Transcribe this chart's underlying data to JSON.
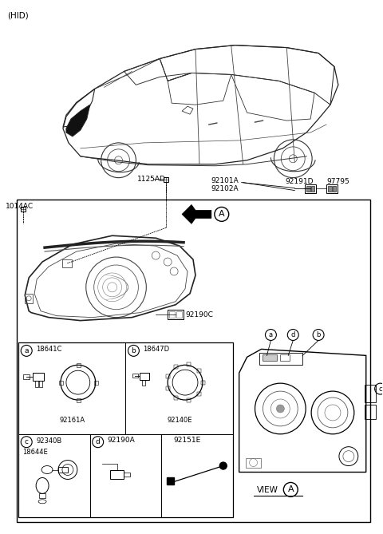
{
  "background_color": "#ffffff",
  "figsize": [
    4.8,
    6.69
  ],
  "dpi": 100,
  "parts": {
    "top_label": "(HID)",
    "label_1125AD": "1125AD",
    "label_1014AC": "1014AC",
    "label_92101A": "92101A",
    "label_92102A": "92102A",
    "label_92191D": "92191D",
    "label_97795": "97795",
    "label_92190C": "92190C",
    "cell_a_part1": "18641C",
    "cell_a_part2": "92161A",
    "cell_b_part1": "18647D",
    "cell_b_part2": "92140E",
    "cell_c_part1": "92340B",
    "cell_c_part2": "18644E",
    "cell_d_text": "92190A",
    "cell_e_text": "92151E",
    "view_label": "VIEW"
  }
}
